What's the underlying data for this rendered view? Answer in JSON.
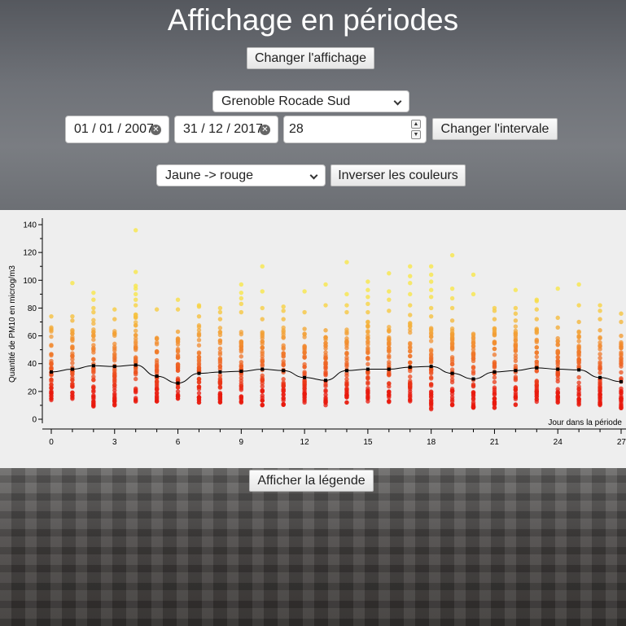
{
  "page": {
    "title": "Affichage en périodes",
    "toggle_display_label": "Changer l'affichage",
    "show_legend_label": "Afficher la légende"
  },
  "controls": {
    "station": "Grenoble Rocade Sud",
    "start_date": "01 / 01 / 2007",
    "end_date": "31 / 12 / 2017",
    "period_length": "28",
    "change_interval_label": "Changer l'intervale",
    "color_scheme": "Jaune -> rouge",
    "invert_colors_label": "Inverser les couleurs"
  },
  "colors": {
    "scale_low": "#e8190e",
    "scale_high": "#f8e64a",
    "mean_line": "#000000"
  },
  "chart_data": {
    "type": "scatter",
    "ylabel": "Quantité de PM10 en microg/m3",
    "xlabel": "Jour dans la période",
    "x_ticks": [
      "0",
      "3",
      "6",
      "9",
      "12",
      "15",
      "18",
      "21",
      "24",
      "27"
    ],
    "y_ticks": [
      "0",
      "20",
      "40",
      "60",
      "80",
      "100",
      "120",
      "140"
    ],
    "xlim": [
      0,
      27
    ],
    "ylim": [
      -3,
      150
    ],
    "grid": false,
    "per_day": [
      {
        "day": 0,
        "min": 12,
        "max": 67,
        "outliers": [
          74
        ]
      },
      {
        "day": 1,
        "min": 14,
        "max": 66,
        "outliers": [
          71,
          74,
          98
        ]
      },
      {
        "day": 2,
        "min": 9,
        "max": 72,
        "outliers": [
          77,
          80,
          86,
          91
        ]
      },
      {
        "day": 3,
        "min": 10,
        "max": 68,
        "outliers": [
          72,
          79
        ]
      },
      {
        "day": 4,
        "min": 12,
        "max": 76,
        "outliers": [
          82,
          86,
          90,
          94,
          96,
          106,
          136
        ]
      },
      {
        "day": 5,
        "min": 12,
        "max": 64,
        "outliers": [
          79
        ]
      },
      {
        "day": 6,
        "min": 12,
        "max": 60,
        "outliers": [
          63,
          79,
          86
        ]
      },
      {
        "day": 7,
        "min": 12,
        "max": 69,
        "outliers": [
          74,
          81,
          82
        ]
      },
      {
        "day": 8,
        "min": 12,
        "max": 66,
        "outliers": [
          72,
          77,
          80
        ]
      },
      {
        "day": 9,
        "min": 12,
        "max": 70,
        "outliers": [
          77,
          83,
          87,
          91,
          97
        ]
      },
      {
        "day": 10,
        "min": 10,
        "max": 64,
        "outliers": [
          72,
          80,
          92,
          110
        ]
      },
      {
        "day": 11,
        "min": 10,
        "max": 66,
        "outliers": [
          72,
          78,
          81
        ]
      },
      {
        "day": 12,
        "min": 12,
        "max": 62,
        "outliers": [
          65,
          77,
          92
        ]
      },
      {
        "day": 13,
        "min": 10,
        "max": 60,
        "outliers": [
          64,
          82,
          97
        ]
      },
      {
        "day": 14,
        "min": 12,
        "max": 68,
        "outliers": [
          77,
          82,
          90,
          113
        ]
      },
      {
        "day": 15,
        "min": 12,
        "max": 72,
        "outliers": [
          77,
          83,
          88,
          93,
          99
        ]
      },
      {
        "day": 16,
        "min": 12,
        "max": 68,
        "outliers": [
          78,
          86,
          92,
          105
        ]
      },
      {
        "day": 17,
        "min": 12,
        "max": 70,
        "outliers": [
          75,
          82,
          90,
          98,
          103,
          110
        ]
      },
      {
        "day": 18,
        "min": 7,
        "max": 68,
        "outliers": [
          74,
          80,
          88,
          93,
          99,
          104,
          110
        ]
      },
      {
        "day": 19,
        "min": 10,
        "max": 66,
        "outliers": [
          71,
          80,
          87,
          94,
          118
        ]
      },
      {
        "day": 20,
        "min": 8,
        "max": 62,
        "outliers": [
          90,
          104
        ]
      },
      {
        "day": 21,
        "min": 8,
        "max": 68,
        "outliers": [
          72,
          78,
          80
        ]
      },
      {
        "day": 22,
        "min": 10,
        "max": 68,
        "outliers": [
          71,
          76,
          80,
          93
        ]
      },
      {
        "day": 23,
        "min": 12,
        "max": 66,
        "outliers": [
          72,
          79,
          85,
          86
        ]
      },
      {
        "day": 24,
        "min": 12,
        "max": 60,
        "outliers": [
          66,
          73,
          94
        ]
      },
      {
        "day": 25,
        "min": 10,
        "max": 64,
        "outliers": [
          70,
          82,
          97
        ]
      },
      {
        "day": 26,
        "min": 10,
        "max": 60,
        "outliers": [
          64,
          72,
          78,
          82
        ]
      },
      {
        "day": 27,
        "min": 8,
        "max": 56,
        "outliers": [
          60,
          70,
          76
        ]
      }
    ],
    "mean_series": {
      "x": [
        0,
        1,
        2,
        3,
        4,
        5,
        6,
        7,
        8,
        9,
        10,
        11,
        12,
        13,
        14,
        15,
        16,
        17,
        18,
        19,
        20,
        21,
        22,
        23,
        24,
        25,
        26,
        27
      ],
      "y": [
        34,
        36,
        38.5,
        38,
        39,
        31,
        26,
        33,
        34,
        34.5,
        36,
        35,
        30,
        28,
        35,
        36,
        36,
        37.5,
        38,
        33,
        29,
        34,
        35,
        37,
        36,
        35.5,
        30,
        27
      ]
    }
  }
}
